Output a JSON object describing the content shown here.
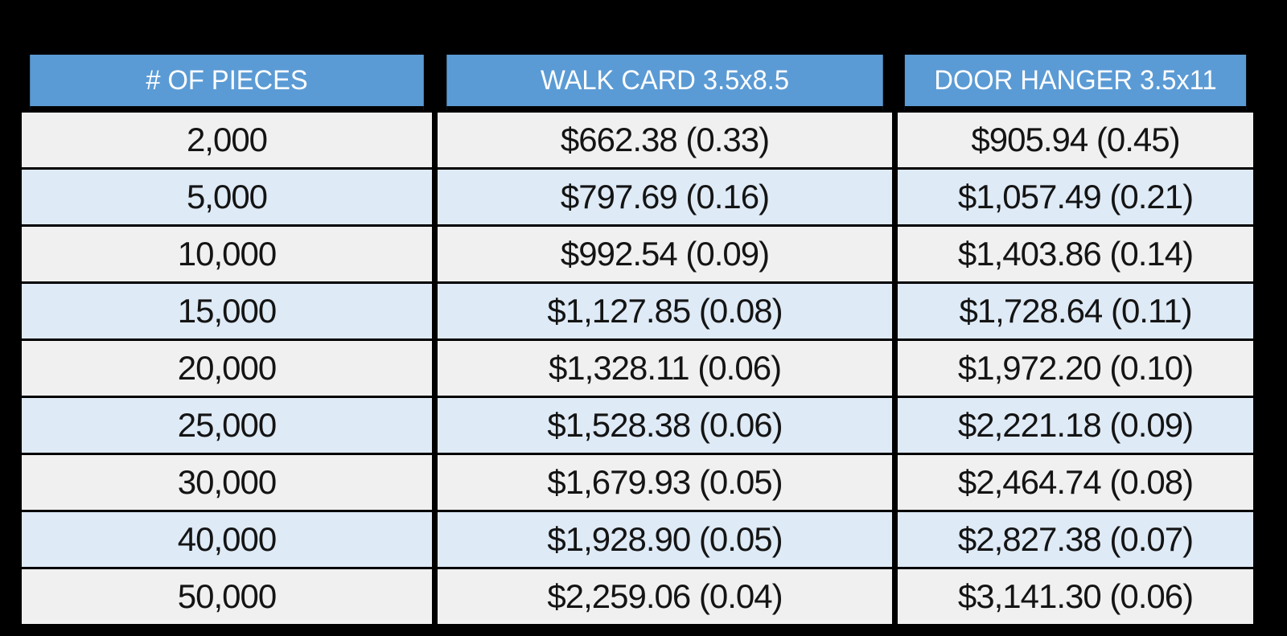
{
  "colors": {
    "canvas_bg": "#000000",
    "border": "#000000",
    "header_bg": "#5B9BD5",
    "header_text": "#FFFFFF",
    "row_odd_bg": "#F0F0F0",
    "row_even_bg": "#DEEAF6",
    "body_text": "#141414"
  },
  "table": {
    "columns": [
      {
        "label": "# OF PIECES"
      },
      {
        "label": "WALK CARD 3.5x8.5"
      },
      {
        "label": "DOOR HANGER 3.5x11"
      }
    ],
    "rows": [
      [
        "2,000",
        "$662.38 (0.33)",
        "$905.94 (0.45)"
      ],
      [
        "5,000",
        "$797.69 (0.16)",
        "$1,057.49 (0.21)"
      ],
      [
        "10,000",
        "$992.54 (0.09)",
        "$1,403.86 (0.14)"
      ],
      [
        "15,000",
        "$1,127.85 (0.08)",
        "$1,728.64 (0.11)"
      ],
      [
        "20,000",
        "$1,328.11 (0.06)",
        "$1,972.20 (0.10)"
      ],
      [
        "25,000",
        "$1,528.38 (0.06)",
        "$2,221.18 (0.09)"
      ],
      [
        "30,000",
        "$1,679.93 (0.05)",
        "$2,464.74 (0.08)"
      ],
      [
        "40,000",
        "$1,928.90 (0.05)",
        "$2,827.38 (0.07)"
      ],
      [
        "50,000",
        "$2,259.06 (0.04)",
        "$3,141.30 (0.06)"
      ]
    ]
  },
  "chart_data": {
    "type": "table",
    "title": "",
    "columns": [
      "# OF PIECES",
      "WALK CARD 3.5x8.5",
      "DOOR HANGER 3.5x11"
    ],
    "pieces": [
      2000,
      5000,
      10000,
      15000,
      20000,
      25000,
      30000,
      40000,
      50000
    ],
    "series": [
      {
        "name": "WALK CARD 3.5x8.5",
        "total_price": [
          662.38,
          797.69,
          992.54,
          1127.85,
          1328.11,
          1528.38,
          1679.93,
          1928.9,
          2259.06
        ],
        "unit_price": [
          0.33,
          0.16,
          0.09,
          0.08,
          0.06,
          0.06,
          0.05,
          0.05,
          0.04
        ]
      },
      {
        "name": "DOOR HANGER 3.5x11",
        "total_price": [
          905.94,
          1057.49,
          1403.86,
          1728.64,
          1972.2,
          2221.18,
          2464.74,
          2827.38,
          3141.3
        ],
        "unit_price": [
          0.45,
          0.21,
          0.14,
          0.11,
          0.1,
          0.09,
          0.08,
          0.07,
          0.06
        ]
      }
    ],
    "layout": "header row blue, alternating light-gray/light-blue data rows, black gridlines on black background"
  }
}
